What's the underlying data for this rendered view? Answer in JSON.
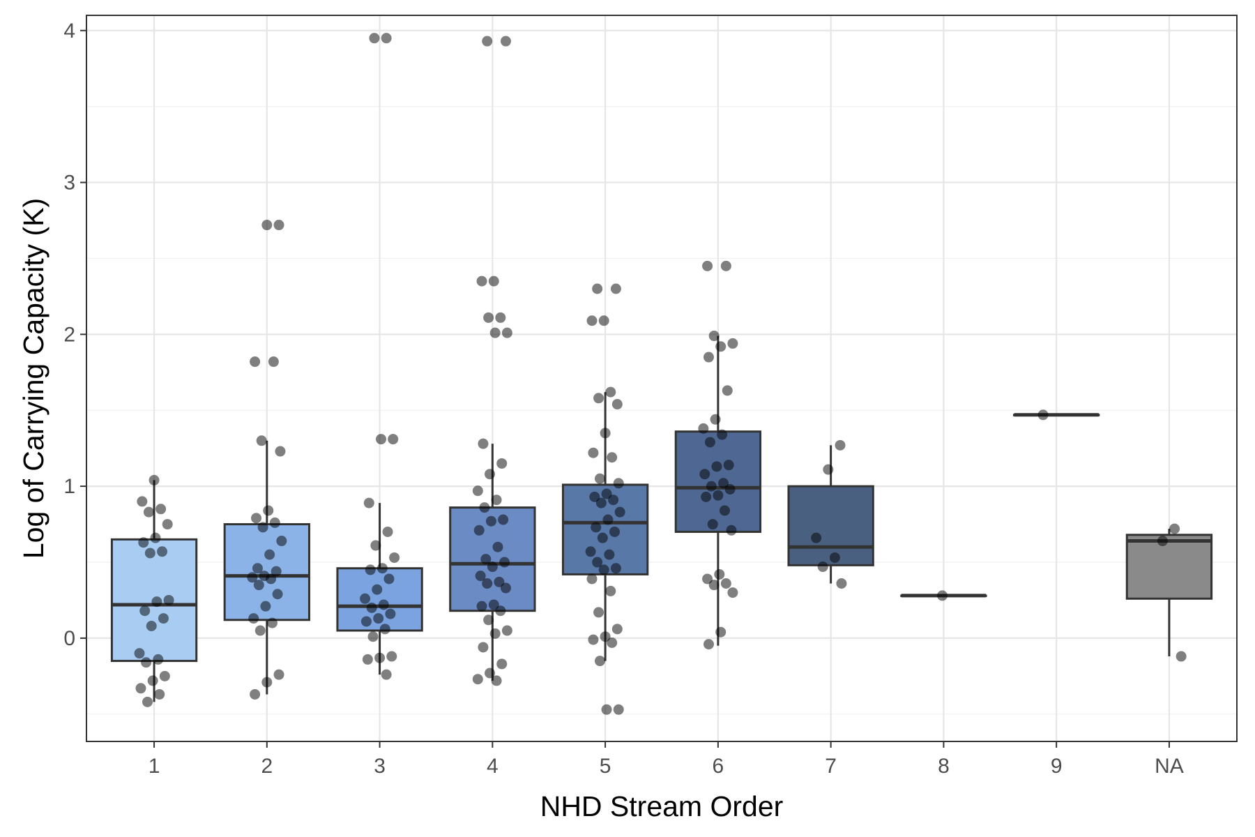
{
  "chart_data": {
    "type": "box",
    "xlabel": "NHD Stream Order",
    "ylabel": "Log of Carrying Capacity (K)",
    "ylim": [
      -0.68,
      4.1
    ],
    "yticks": [
      0,
      1,
      2,
      3,
      4
    ],
    "grid": true,
    "legend": "none",
    "categories": [
      "1",
      "2",
      "3",
      "4",
      "5",
      "6",
      "7",
      "8",
      "9",
      "NA"
    ],
    "boxes": [
      {
        "category": "1",
        "q1": -0.15,
        "median": 0.22,
        "q3": 0.65,
        "whisker_low": -0.42,
        "whisker_high": 1.04,
        "color": "#a9cdf2"
      },
      {
        "category": "2",
        "q1": 0.12,
        "median": 0.41,
        "q3": 0.75,
        "whisker_low": -0.37,
        "whisker_high": 1.3,
        "color": "#8cb3e8"
      },
      {
        "category": "3",
        "q1": 0.05,
        "median": 0.21,
        "q3": 0.46,
        "whisker_low": -0.24,
        "whisker_high": 0.89,
        "color": "#7aa3e0"
      },
      {
        "category": "4",
        "q1": 0.18,
        "median": 0.49,
        "q3": 0.86,
        "whisker_low": -0.28,
        "whisker_high": 1.28,
        "color": "#6a8bc4"
      },
      {
        "category": "5",
        "q1": 0.42,
        "median": 0.76,
        "q3": 1.01,
        "whisker_low": -0.15,
        "whisker_high": 1.62,
        "color": "#5878a8"
      },
      {
        "category": "6",
        "q1": 0.7,
        "median": 0.99,
        "q3": 1.36,
        "whisker_low": -0.05,
        "whisker_high": 1.99,
        "color": "#4f6893"
      },
      {
        "category": "7",
        "q1": 0.48,
        "median": 0.6,
        "q3": 1.0,
        "whisker_low": 0.36,
        "whisker_high": 1.27,
        "color": "#4a6080"
      },
      {
        "category": "8",
        "q1": 0.28,
        "median": 0.28,
        "q3": 0.28,
        "whisker_low": 0.28,
        "whisker_high": 0.28,
        "color": "#44556b"
      },
      {
        "category": "9",
        "q1": 1.47,
        "median": 1.47,
        "q3": 1.47,
        "whisker_low": 1.47,
        "whisker_high": 1.47,
        "color": "#3d4b5c"
      },
      {
        "category": "NA",
        "q1": 0.26,
        "median": 0.64,
        "q3": 0.68,
        "whisker_low": -0.12,
        "whisker_high": 0.72,
        "color": "#8a8a8a"
      }
    ],
    "points": [
      [
        1,
        1.04
      ],
      [
        1,
        0.9
      ],
      [
        1,
        0.85
      ],
      [
        1,
        0.83
      ],
      [
        1,
        0.75
      ],
      [
        1,
        0.66
      ],
      [
        1,
        0.63
      ],
      [
        1,
        0.57
      ],
      [
        1,
        0.56
      ],
      [
        1,
        0.25
      ],
      [
        1,
        0.24
      ],
      [
        1,
        0.18
      ],
      [
        1,
        0.13
      ],
      [
        1,
        0.08
      ],
      [
        1,
        -0.1
      ],
      [
        1,
        -0.14
      ],
      [
        1,
        -0.16
      ],
      [
        1,
        -0.25
      ],
      [
        1,
        -0.28
      ],
      [
        1,
        -0.33
      ],
      [
        1,
        -0.37
      ],
      [
        1,
        -0.42
      ],
      [
        2,
        2.72
      ],
      [
        2,
        2.72
      ],
      [
        2,
        1.82
      ],
      [
        2,
        1.82
      ],
      [
        2,
        1.3
      ],
      [
        2,
        1.23
      ],
      [
        2,
        0.84
      ],
      [
        2,
        0.79
      ],
      [
        2,
        0.76
      ],
      [
        2,
        0.73
      ],
      [
        2,
        0.64
      ],
      [
        2,
        0.55
      ],
      [
        2,
        0.46
      ],
      [
        2,
        0.44
      ],
      [
        2,
        0.41
      ],
      [
        2,
        0.4
      ],
      [
        2,
        0.39
      ],
      [
        2,
        0.35
      ],
      [
        2,
        0.29
      ],
      [
        2,
        0.21
      ],
      [
        2,
        0.13
      ],
      [
        2,
        0.1
      ],
      [
        2,
        0.05
      ],
      [
        2,
        -0.24
      ],
      [
        2,
        -0.29
      ],
      [
        2,
        -0.37
      ],
      [
        3,
        3.95
      ],
      [
        3,
        3.95
      ],
      [
        3,
        1.31
      ],
      [
        3,
        1.31
      ],
      [
        3,
        0.89
      ],
      [
        3,
        0.7
      ],
      [
        3,
        0.61
      ],
      [
        3,
        0.53
      ],
      [
        3,
        0.46
      ],
      [
        3,
        0.45
      ],
      [
        3,
        0.39
      ],
      [
        3,
        0.32
      ],
      [
        3,
        0.26
      ],
      [
        3,
        0.22
      ],
      [
        3,
        0.2
      ],
      [
        3,
        0.16
      ],
      [
        3,
        0.13
      ],
      [
        3,
        0.11
      ],
      [
        3,
        0.06
      ],
      [
        3,
        0.01
      ],
      [
        3,
        -0.12
      ],
      [
        3,
        -0.13
      ],
      [
        3,
        -0.14
      ],
      [
        3,
        -0.24
      ],
      [
        4,
        3.93
      ],
      [
        4,
        3.93
      ],
      [
        4,
        2.35
      ],
      [
        4,
        2.35
      ],
      [
        4,
        2.11
      ],
      [
        4,
        2.11
      ],
      [
        4,
        2.01
      ],
      [
        4,
        2.01
      ],
      [
        4,
        1.28
      ],
      [
        4,
        1.15
      ],
      [
        4,
        1.08
      ],
      [
        4,
        0.97
      ],
      [
        4,
        0.91
      ],
      [
        4,
        0.86
      ],
      [
        4,
        0.78
      ],
      [
        4,
        0.77
      ],
      [
        4,
        0.71
      ],
      [
        4,
        0.6
      ],
      [
        4,
        0.52
      ],
      [
        4,
        0.5
      ],
      [
        4,
        0.47
      ],
      [
        4,
        0.41
      ],
      [
        4,
        0.37
      ],
      [
        4,
        0.36
      ],
      [
        4,
        0.33
      ],
      [
        4,
        0.22
      ],
      [
        4,
        0.21
      ],
      [
        4,
        0.18
      ],
      [
        4,
        0.12
      ],
      [
        4,
        0.05
      ],
      [
        4,
        0.03
      ],
      [
        4,
        -0.06
      ],
      [
        4,
        -0.17
      ],
      [
        4,
        -0.23
      ],
      [
        4,
        -0.27
      ],
      [
        4,
        -0.28
      ],
      [
        5,
        2.3
      ],
      [
        5,
        2.3
      ],
      [
        5,
        2.09
      ],
      [
        5,
        2.09
      ],
      [
        5,
        1.62
      ],
      [
        5,
        1.58
      ],
      [
        5,
        1.54
      ],
      [
        5,
        1.35
      ],
      [
        5,
        1.22
      ],
      [
        5,
        1.19
      ],
      [
        5,
        1.05
      ],
      [
        5,
        1.02
      ],
      [
        5,
        0.95
      ],
      [
        5,
        0.93
      ],
      [
        5,
        0.91
      ],
      [
        5,
        0.89
      ],
      [
        5,
        0.83
      ],
      [
        5,
        0.78
      ],
      [
        5,
        0.73
      ],
      [
        5,
        0.7
      ],
      [
        5,
        0.66
      ],
      [
        5,
        0.57
      ],
      [
        5,
        0.55
      ],
      [
        5,
        0.5
      ],
      [
        5,
        0.46
      ],
      [
        5,
        0.45
      ],
      [
        5,
        0.39
      ],
      [
        5,
        0.31
      ],
      [
        5,
        0.17
      ],
      [
        5,
        0.06
      ],
      [
        5,
        0.01
      ],
      [
        5,
        -0.01
      ],
      [
        5,
        -0.03
      ],
      [
        5,
        -0.15
      ],
      [
        5,
        -0.47
      ],
      [
        5,
        -0.47
      ],
      [
        6,
        2.45
      ],
      [
        6,
        2.45
      ],
      [
        6,
        1.99
      ],
      [
        6,
        1.94
      ],
      [
        6,
        1.92
      ],
      [
        6,
        1.85
      ],
      [
        6,
        1.63
      ],
      [
        6,
        1.44
      ],
      [
        6,
        1.38
      ],
      [
        6,
        1.34
      ],
      [
        6,
        1.29
      ],
      [
        6,
        1.14
      ],
      [
        6,
        1.13
      ],
      [
        6,
        1.08
      ],
      [
        6,
        1.02
      ],
      [
        6,
        1.0
      ],
      [
        6,
        0.98
      ],
      [
        6,
        0.94
      ],
      [
        6,
        0.93
      ],
      [
        6,
        0.84
      ],
      [
        6,
        0.75
      ],
      [
        6,
        0.71
      ],
      [
        6,
        0.42
      ],
      [
        6,
        0.39
      ],
      [
        6,
        0.36
      ],
      [
        6,
        0.35
      ],
      [
        6,
        0.3
      ],
      [
        6,
        0.04
      ],
      [
        6,
        -0.04
      ],
      [
        7,
        1.27
      ],
      [
        7,
        1.11
      ],
      [
        7,
        0.66
      ],
      [
        7,
        0.53
      ],
      [
        7,
        0.47
      ],
      [
        7,
        0.36
      ],
      [
        8,
        0.28
      ],
      [
        9,
        1.47
      ],
      [
        10,
        0.72
      ],
      [
        10,
        0.64
      ],
      [
        10,
        -0.12
      ]
    ]
  }
}
